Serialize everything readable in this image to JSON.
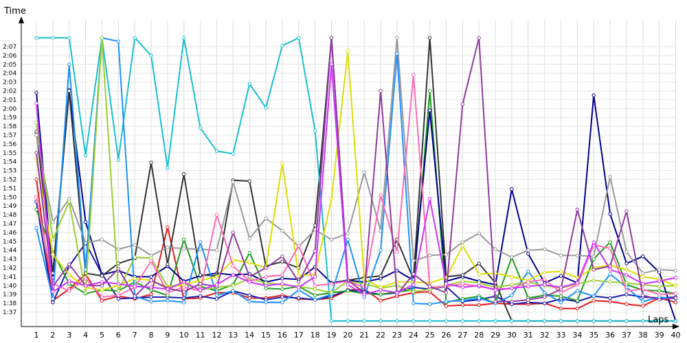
{
  "chart_data": {
    "type": "line",
    "xlabel": "Laps",
    "ylabel": "Time",
    "x": [
      1,
      2,
      3,
      4,
      5,
      6,
      7,
      8,
      9,
      10,
      11,
      12,
      13,
      14,
      15,
      16,
      17,
      18,
      19,
      20,
      21,
      22,
      23,
      24,
      25,
      26,
      27,
      28,
      29,
      30,
      31,
      32,
      33,
      34,
      35,
      36,
      37,
      38,
      39,
      40
    ],
    "y_ticks": [
      "1:37",
      "1:38",
      "1:39",
      "1:40",
      "1:41",
      "1:42",
      "1:43",
      "1:44",
      "1:45",
      "1:46",
      "1:47",
      "1:48",
      "1:49",
      "1:50",
      "1:51",
      "1:52",
      "1:53",
      "1:54",
      "1:55",
      "1:56",
      "1:57",
      "1:58",
      "1:59",
      "2:00",
      "2:01",
      "2:02",
      "2:03",
      "2:04",
      "2:05",
      "2:06",
      "2:07"
    ],
    "ylim": [
      96.0,
      128.0
    ],
    "grid": true,
    "series": [
      {
        "color": "#e41a1c",
        "values": [
          112,
          98.3,
          99.6,
          101.3,
          98.3,
          98.8,
          98.5,
          99.0,
          106.6,
          98.5,
          98.6,
          99.2,
          99.2,
          98.6,
          98.6,
          98.9,
          98.5,
          98.4,
          98.6,
          99.5,
          99.6,
          98.3,
          98.8,
          99.2,
          99.3,
          97.7,
          97.8,
          97.8,
          98.0,
          97.9,
          97.9,
          98.0,
          97.4,
          97.4,
          98.3,
          98.2,
          97.9,
          97.7,
          98.6,
          98.1
        ]
      },
      {
        "color": "#1a1aa8",
        "values": [
          109.5,
          98.1,
          102.2,
          104.8,
          101.3,
          98.5,
          98.6,
          98.7,
          98.7,
          98.6,
          98.8,
          98.5,
          99.4,
          98.9,
          98.4,
          98.7,
          98.6,
          98.4,
          98.8,
          99.5,
          99.3,
          99.0,
          99.2,
          99.8,
          99.6,
          99.9,
          98.2,
          98.4,
          98.8,
          97.9,
          98.1,
          98.0,
          98.5,
          98.2,
          98.8,
          98.6,
          99.0,
          98.7,
          98.6,
          98.7
        ]
      },
      {
        "color": "#1f9a1f",
        "values": [
          108.6,
          103.8,
          100.2,
          99.1,
          99.5,
          99.4,
          100.4,
          99.5,
          98.9,
          105.2,
          99.9,
          99.4,
          100.1,
          103.7,
          99.7,
          99.6,
          99.9,
          98.9,
          99.2,
          99.4,
          99.1,
          99.0,
          99.3,
          99.5,
          122.0,
          98.1,
          98.5,
          98.8,
          98.0,
          103.2,
          98.6,
          98.9,
          98.8,
          98.3,
          103.0,
          104.9,
          100.1,
          99.5,
          99.4,
          99.1
        ]
      },
      {
        "color": "#00008b",
        "values": [
          121.8,
          100.9,
          122.1,
          107.2,
          101.2,
          101.7,
          101.0,
          101.0,
          102.2,
          100.5,
          101.1,
          101.4,
          101.2,
          101.3,
          100.4,
          100.8,
          100.7,
          102.1,
          100.3,
          100.6,
          100.4,
          100.8,
          101.7,
          100.6,
          119.8,
          100.5,
          101.0,
          100.5,
          100.1,
          110.9,
          103.6,
          100.3,
          101.1,
          100.3,
          121.5,
          108.1,
          102.5,
          103.3,
          101.5,
          96.0
        ]
      },
      {
        "color": "#333333",
        "values": [
          117.4,
          101.4,
          122.0,
          101.4,
          101.1,
          102.5,
          103.1,
          113.9,
          102.4,
          112.6,
          101.2,
          101.1,
          111.9,
          111.8,
          102.2,
          102.7,
          102.0,
          106.8,
          128.0,
          100.6,
          100.9,
          101.1,
          105.2,
          100.7,
          128.0,
          101.0,
          101.2,
          102.5,
          100.3,
          96.0,
          96.0,
          96.0,
          96.0,
          96.0,
          96.0,
          96.0,
          96.0,
          96.0,
          96.0,
          96.0
        ]
      },
      {
        "color": "#999999",
        "values": [
          117.0,
          107.2,
          109.8,
          104.8,
          105.2,
          104.1,
          104.6,
          103.4,
          104.3,
          104.2,
          104.1,
          104.0,
          111.7,
          105.3,
          107.6,
          106.2,
          104.4,
          106.3,
          105.2,
          105.9,
          112.8,
          106.2,
          128.0,
          102.8,
          103.4,
          103.5,
          104.9,
          105.9,
          104.1,
          103.2,
          104.0,
          104.1,
          103.4,
          103.4,
          103.3,
          112.3,
          103.8,
          101.4,
          101.8,
          101.7
        ]
      },
      {
        "color": "#17becf",
        "values": [
          128,
          128,
          128,
          114.7,
          128,
          114.2,
          128,
          126.0,
          113.3,
          128,
          117.8,
          115.2,
          114.9,
          122.8,
          120.1,
          127.1,
          128,
          117.5,
          96.0,
          96.0,
          96.0,
          96.0,
          96.0,
          96.0,
          96.0,
          96.0,
          96.0,
          96.0,
          96.0,
          96.0,
          96.0,
          96.0,
          96.0,
          96.0,
          96.0,
          96.0,
          96.0,
          96.0,
          96.0,
          96.0
        ]
      },
      {
        "color": "#1e90ff",
        "values": [
          106.5,
          98.5,
          125.0,
          101.8,
          128.0,
          127.6,
          98.8,
          98.2,
          98.3,
          98.1,
          104.9,
          98.9,
          99.4,
          98.2,
          98.1,
          98.1,
          99.5,
          98.4,
          99.0,
          105.2,
          98.7,
          104.0,
          126.2,
          98.0,
          97.9,
          98.2,
          98.3,
          98.6,
          98.0,
          98.9,
          101.6,
          99.2,
          98.1,
          99.4,
          98.8,
          101.3,
          99.8,
          98.2,
          98.7,
          98.5
        ]
      },
      {
        "color": "#9acd32",
        "values": [
          118.4,
          105.2,
          109.5,
          99.2,
          128.0,
          99.4,
          103.2,
          103.1,
          99.9,
          100.2,
          99.5,
          99.8,
          100.0,
          100.8,
          100.3,
          100.1,
          99.9,
          99.6,
          99.2,
          100.5,
          100.2,
          99.7,
          100.0,
          99.3,
          99.6,
          100.0,
          100.5,
          100.3,
          99.8,
          100.1,
          100.4,
          100.0,
          99.7,
          100.2,
          100.6,
          100.4,
          100.3,
          100.1,
          99.9,
          100.0
        ]
      },
      {
        "color": "#dddd00",
        "values": [
          114.4,
          103.5,
          101.2,
          99.8,
          99.5,
          100.0,
          100.8,
          100.6,
          99.8,
          100.1,
          100.6,
          101.0,
          102.9,
          102.6,
          102.0,
          113.8,
          101.1,
          101.3,
          109.8,
          126.5,
          100.7,
          99.8,
          100.4,
          100.4,
          100.3,
          100.9,
          104.5,
          101.3,
          101.4,
          101.0,
          100.6,
          101.5,
          101.6,
          100.9,
          102.0,
          102.3,
          101.8,
          101.0,
          100.7,
          100.0
        ]
      },
      {
        "color": "#ff69b4",
        "values": [
          110.0,
          100.2,
          99.4,
          100.8,
          98.7,
          98.9,
          99.8,
          102.8,
          99.2,
          99.8,
          99.4,
          108.0,
          102.2,
          100.5,
          101.0,
          101.2,
          104.5,
          100.0,
          100.2,
          100.5,
          99.8,
          110.2,
          103.8,
          123.8,
          99.8,
          99.9,
          100.2,
          99.9,
          99.6,
          99.7,
          100.4,
          100.7,
          99.2,
          100.1,
          104.6,
          104.2,
          99.4,
          99.6,
          99.0,
          99.1
        ]
      },
      {
        "color": "#8e3a9e",
        "values": [
          115.0,
          99.9,
          102.4,
          100.0,
          100.0,
          101.9,
          98.8,
          100.6,
          99.7,
          99.3,
          100.2,
          99.9,
          106.0,
          101.0,
          102.0,
          103.3,
          100.4,
          103.9,
          128.0,
          100.6,
          99.2,
          122.0,
          99.0,
          101.3,
          99.9,
          99.2,
          120.5,
          128.0,
          98.2,
          98.2,
          98.4,
          98.7,
          99.6,
          108.6,
          101.8,
          102.2,
          108.4,
          98.9,
          98.4,
          98.6
        ]
      },
      {
        "color": "#cc33ff",
        "values": [
          120.6,
          99.3,
          100.5,
          100.0,
          100.4,
          100.2,
          99.9,
          99.8,
          99.6,
          100.4,
          99.5,
          100.1,
          101.2,
          100.4,
          100.0,
          100.2,
          99.8,
          101.0,
          125.0,
          100.1,
          99.0,
          99.5,
          99.2,
          100.1,
          109.8,
          100.2,
          99.8,
          100.0,
          99.5,
          99.7,
          99.9,
          100.1,
          99.8,
          100.3,
          104.9,
          101.8,
          101.2,
          100.2,
          100.5,
          100.9
        ]
      }
    ]
  }
}
